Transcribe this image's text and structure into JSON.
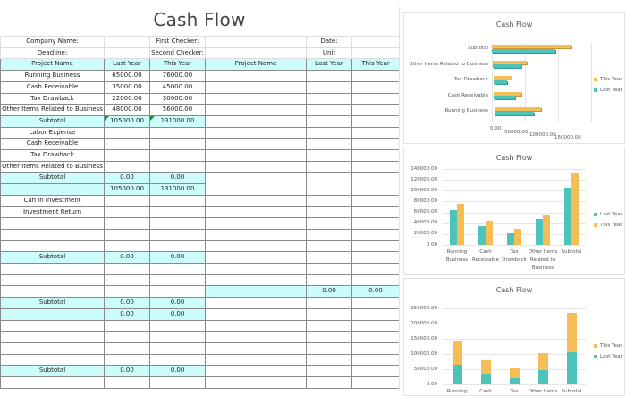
{
  "sheet": {
    "title": "Cash Flow",
    "meta": {
      "company_label": "Company Name:",
      "first_checker_label": "First Checker:",
      "date_label": "Date:",
      "deadline_label": "Deadline:",
      "second_checker_label": "Second Checker:",
      "unit_label": "Unit"
    },
    "headers": [
      "Project Name",
      "Last Year",
      "This Year",
      "Project Name",
      "Last Year",
      "This Year"
    ],
    "rows": [
      {
        "name": "Running Business",
        "last": "65000.00",
        "this": "76000.00"
      },
      {
        "name": "Cash Receivable",
        "last": "35000.00",
        "this": "45000.00"
      },
      {
        "name": "Tax Drawback",
        "last": "22000.00",
        "this": "30000.00"
      },
      {
        "name": "Other Items Related to Business",
        "last": "48000.00",
        "this": "56000.00"
      },
      {
        "name": "Subtotal",
        "last": "105000.00",
        "this": "131000.00"
      },
      {
        "name": "Labor Expense",
        "last": "",
        "this": ""
      },
      {
        "name": "Cash Receivable",
        "last": "",
        "this": ""
      },
      {
        "name": "Tax Drawback",
        "last": "",
        "this": ""
      },
      {
        "name": "Other Items Related to Business",
        "last": "",
        "this": ""
      },
      {
        "name": "Subtotal",
        "last": "0.00",
        "this": "0.00"
      },
      {
        "name": "",
        "last": "105000.00",
        "this": "131000.00"
      },
      {
        "name": "Cah in Investment",
        "last": "",
        "this": ""
      },
      {
        "name": "Investment Return",
        "last": "",
        "this": ""
      },
      {
        "name": "",
        "last": "",
        "this": ""
      },
      {
        "name": "",
        "last": "",
        "this": ""
      },
      {
        "name": "",
        "last": "",
        "this": ""
      },
      {
        "name": "Subtotal",
        "last": "0.00",
        "this": "0.00"
      },
      {
        "name": "",
        "last": "",
        "this": ""
      },
      {
        "name": "",
        "last": "",
        "this": ""
      },
      {
        "name": "",
        "last": "",
        "this": ""
      },
      {
        "name": "Subtotal",
        "last": "0.00",
        "this": "0.00"
      },
      {
        "name": "",
        "last": "0.00",
        "this": "0.00"
      },
      {
        "name": "",
        "last": "",
        "this": ""
      },
      {
        "name": "",
        "last": "",
        "this": ""
      },
      {
        "name": "",
        "last": "",
        "this": ""
      },
      {
        "name": "",
        "last": "",
        "this": ""
      },
      {
        "name": "Subtotal",
        "last": "0.00",
        "this": "0.00"
      },
      {
        "name": "",
        "last": "",
        "this": ""
      }
    ],
    "right_total": {
      "last": "0.00",
      "this": "0.00"
    }
  },
  "colors": {
    "last_year": "#4dc4b9",
    "this_year": "#f5bd55",
    "highlight": "#ccfcfc"
  },
  "chart_data": [
    {
      "type": "bar",
      "orientation": "horizontal-3d",
      "title": "Cash Flow",
      "categories": [
        "Running Business",
        "Cash Receivable",
        "Tax Drawback",
        "Other Items Related to Business",
        "Subtotal"
      ],
      "series": [
        {
          "name": "This Year",
          "values": [
            76000,
            45000,
            30000,
            56000,
            131000
          ]
        },
        {
          "name": "Last Year",
          "values": [
            65000,
            35000,
            22000,
            48000,
            105000
          ]
        }
      ],
      "x_ticks": [
        "0.00",
        "50000.00",
        "100000.00",
        "150000.00"
      ],
      "xlim": [
        0,
        150000
      ],
      "legend": [
        "This Year",
        "Last Year"
      ],
      "legend_position": "right"
    },
    {
      "type": "bar",
      "title": "Cash Flow",
      "categories": [
        "Running Business",
        "Cash Receivable",
        "Tax Drawback",
        "Other Items Related to Business",
        "Subtotal"
      ],
      "series": [
        {
          "name": "Last Year",
          "values": [
            65000,
            35000,
            22000,
            48000,
            105000
          ]
        },
        {
          "name": "This Year",
          "values": [
            76000,
            45000,
            30000,
            56000,
            131000
          ]
        }
      ],
      "y_ticks": [
        "0.00",
        "20000.00",
        "40000.00",
        "60000.00",
        "80000.00",
        "100000.00",
        "120000.00",
        "140000.00"
      ],
      "ylim": [
        0,
        140000
      ],
      "grid": true,
      "legend": [
        "Last Year",
        "This Year"
      ],
      "legend_position": "right"
    },
    {
      "type": "bar",
      "stacked": true,
      "title": "Cash Flow",
      "categories": [
        "Running",
        "Cash",
        "Tax",
        "Other Items",
        "Subtotal"
      ],
      "series": [
        {
          "name": "Last Year",
          "values": [
            65000,
            35000,
            22000,
            48000,
            105000
          ]
        },
        {
          "name": "This Year",
          "values": [
            76000,
            45000,
            30000,
            56000,
            131000
          ]
        }
      ],
      "y_ticks": [
        "0.00",
        "50000.00",
        "100000.00",
        "150000.00",
        "200000.00",
        "250000.00"
      ],
      "ylim": [
        0,
        250000
      ],
      "grid": true,
      "legend": [
        "This Year",
        "Last Year"
      ],
      "legend_position": "right"
    }
  ]
}
